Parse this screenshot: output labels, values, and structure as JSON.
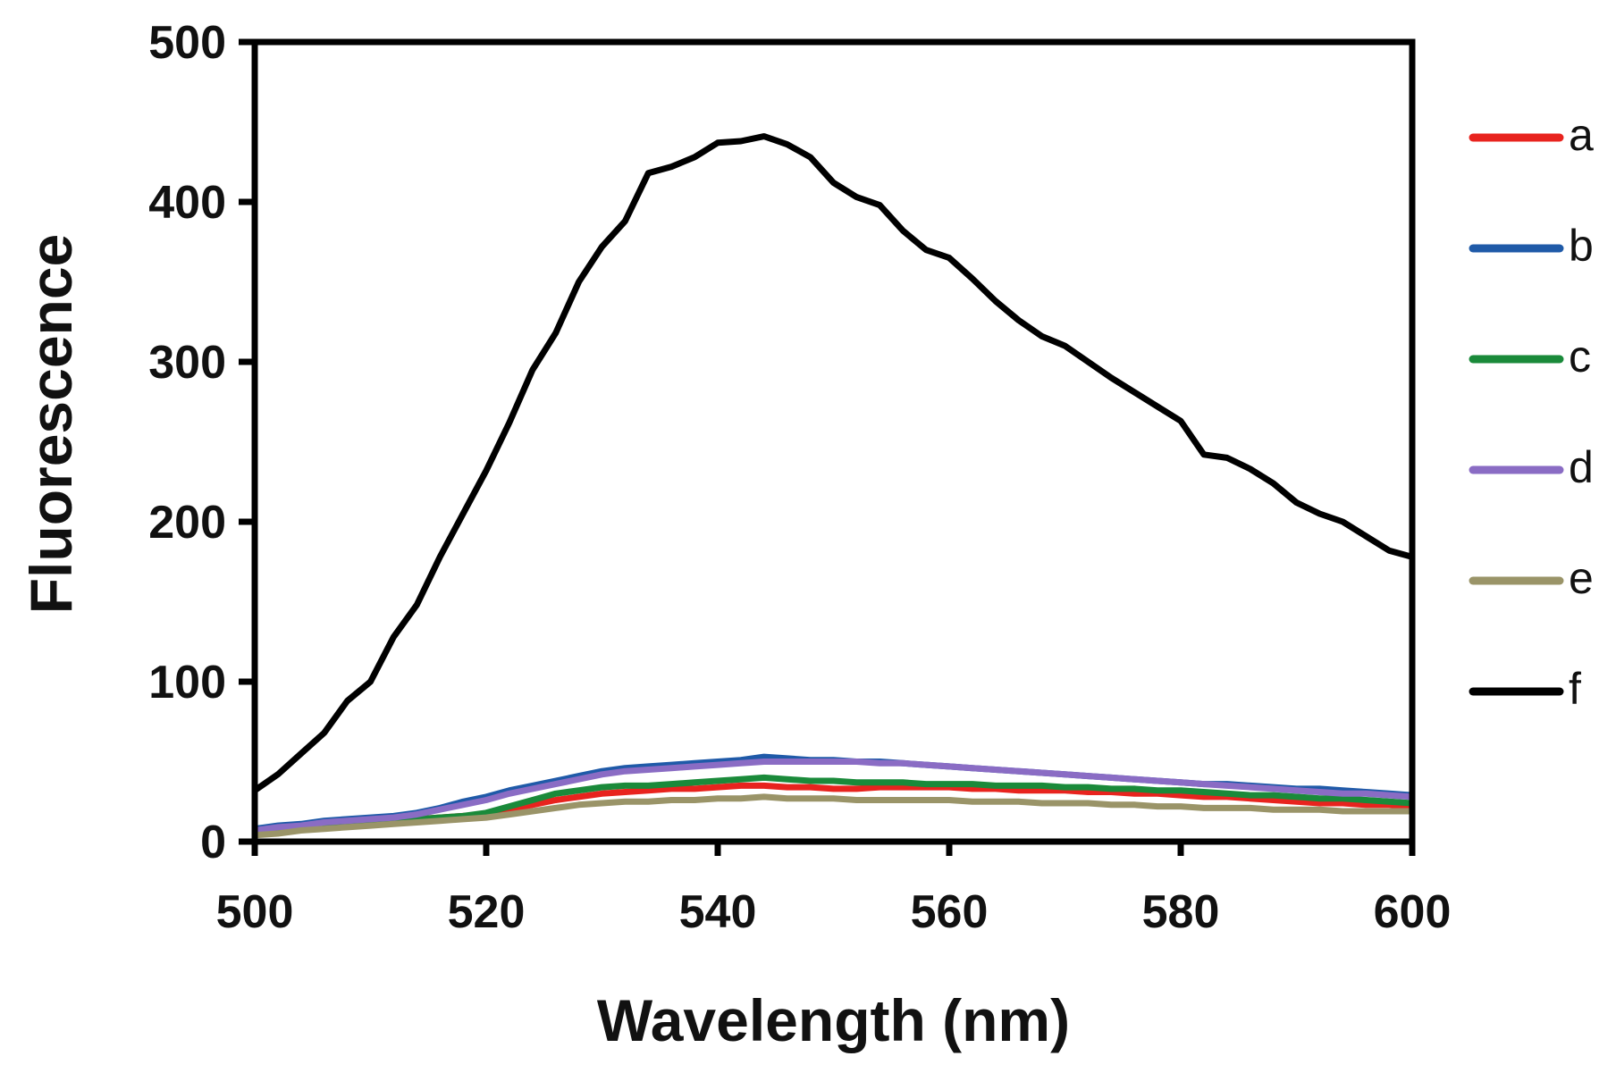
{
  "chart_data": {
    "type": "line",
    "title": "",
    "xlabel": "Wavelength (nm)",
    "ylabel": "Fluorescence",
    "xlim": [
      500,
      600
    ],
    "ylim": [
      0,
      500
    ],
    "xticks": [
      500,
      520,
      540,
      560,
      580,
      600
    ],
    "yticks": [
      0,
      100,
      200,
      300,
      400,
      500
    ],
    "xtick_labels": [
      "500",
      "520",
      "540",
      "560",
      "580",
      "600"
    ],
    "ytick_labels": [
      "0",
      "100",
      "200",
      "300",
      "400",
      "500"
    ],
    "grid": false,
    "legend_position": "right",
    "x": [
      500,
      502,
      504,
      506,
      508,
      510,
      512,
      514,
      516,
      518,
      520,
      522,
      524,
      526,
      528,
      530,
      532,
      534,
      536,
      538,
      540,
      542,
      544,
      546,
      548,
      550,
      552,
      554,
      556,
      558,
      560,
      562,
      564,
      566,
      568,
      570,
      572,
      574,
      576,
      578,
      580,
      582,
      584,
      586,
      588,
      590,
      592,
      594,
      596,
      598,
      600
    ],
    "series": [
      {
        "name": "a",
        "color": "#e8231e",
        "values": [
          5,
          7,
          8,
          10,
          11,
          12,
          13,
          14,
          15,
          16,
          17,
          20,
          23,
          26,
          28,
          30,
          31,
          32,
          33,
          33,
          34,
          35,
          35,
          34,
          34,
          33,
          33,
          34,
          34,
          34,
          34,
          33,
          33,
          32,
          32,
          32,
          31,
          31,
          30,
          30,
          29,
          28,
          28,
          27,
          26,
          25,
          24,
          24,
          23,
          23,
          22
        ]
      },
      {
        "name": "b",
        "color": "#1f5aa8",
        "values": [
          8,
          10,
          11,
          13,
          14,
          15,
          16,
          18,
          21,
          25,
          28,
          32,
          35,
          38,
          41,
          44,
          46,
          47,
          48,
          49,
          50,
          51,
          53,
          52,
          51,
          51,
          50,
          50,
          49,
          48,
          47,
          46,
          45,
          44,
          43,
          42,
          41,
          40,
          39,
          38,
          37,
          36,
          36,
          35,
          34,
          33,
          33,
          32,
          31,
          30,
          29
        ]
      },
      {
        "name": "c",
        "color": "#1a8a3a",
        "values": [
          5,
          6,
          8,
          10,
          11,
          12,
          13,
          14,
          15,
          16,
          18,
          22,
          26,
          30,
          32,
          34,
          35,
          35,
          36,
          37,
          38,
          39,
          40,
          39,
          38,
          38,
          37,
          37,
          37,
          36,
          36,
          36,
          35,
          35,
          35,
          34,
          34,
          33,
          33,
          32,
          32,
          31,
          30,
          29,
          29,
          28,
          27,
          27,
          26,
          25,
          24
        ]
      },
      {
        "name": "d",
        "color": "#8a6cc4",
        "values": [
          7,
          9,
          10,
          12,
          13,
          14,
          15,
          17,
          20,
          23,
          26,
          30,
          33,
          36,
          39,
          42,
          44,
          45,
          46,
          47,
          48,
          49,
          50,
          50,
          50,
          50,
          50,
          49,
          49,
          48,
          47,
          46,
          45,
          44,
          43,
          42,
          41,
          40,
          39,
          38,
          37,
          36,
          35,
          34,
          33,
          32,
          31,
          30,
          30,
          29,
          28
        ]
      },
      {
        "name": "e",
        "color": "#9a9468",
        "values": [
          4,
          5,
          7,
          8,
          9,
          10,
          11,
          12,
          13,
          14,
          15,
          17,
          19,
          21,
          23,
          24,
          25,
          25,
          26,
          26,
          27,
          27,
          28,
          27,
          27,
          27,
          26,
          26,
          26,
          26,
          26,
          25,
          25,
          25,
          24,
          24,
          24,
          23,
          23,
          22,
          22,
          21,
          21,
          21,
          20,
          20,
          20,
          19,
          19,
          19,
          19
        ]
      },
      {
        "name": "f",
        "color": "#000000",
        "values": [
          32,
          42,
          55,
          68,
          88,
          100,
          128,
          148,
          178,
          205,
          232,
          262,
          295,
          318,
          350,
          372,
          388,
          418,
          422,
          428,
          437,
          438,
          441,
          436,
          428,
          412,
          403,
          398,
          382,
          370,
          365,
          352,
          338,
          326,
          316,
          310,
          300,
          290,
          281,
          272,
          263,
          242,
          240,
          233,
          224,
          212,
          205,
          200,
          191,
          182,
          178
        ]
      }
    ]
  }
}
